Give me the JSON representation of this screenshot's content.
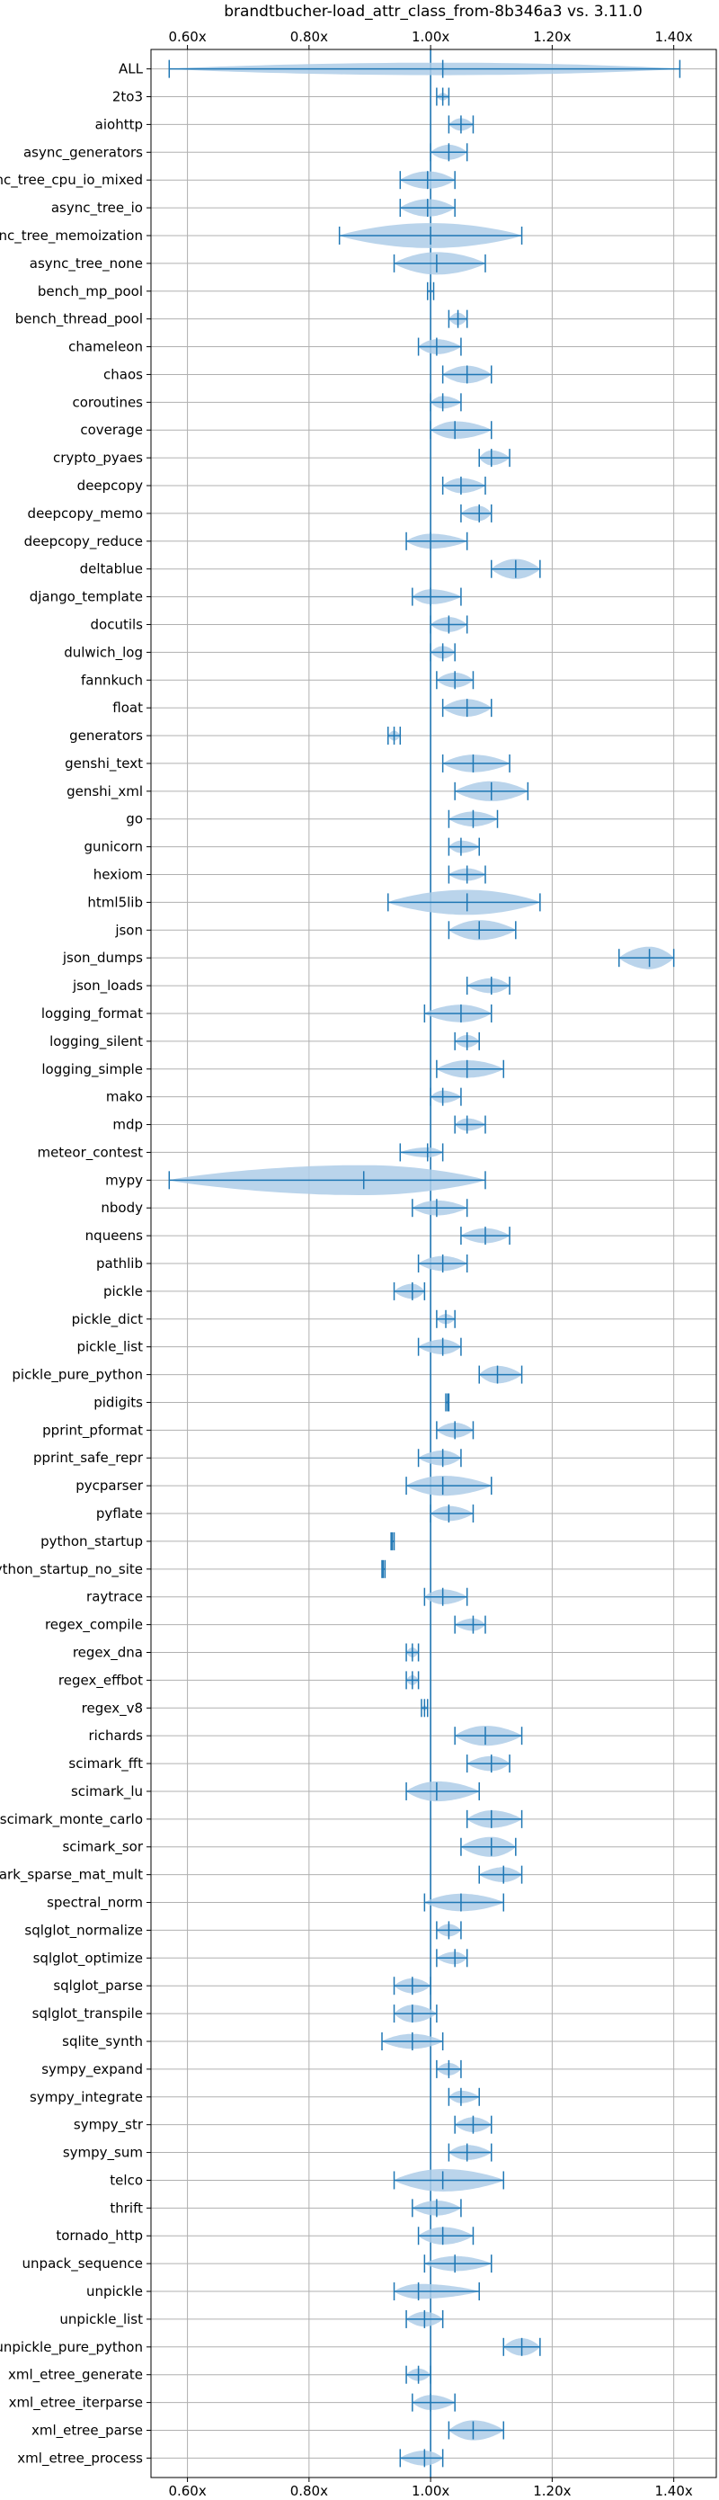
{
  "chart_data": {
    "type": "violin",
    "title": "brandtbucher-load_attr_class_from-8b346a3 vs. 3.11.0",
    "xlabel": "",
    "ylabel": "",
    "x_ticks": [
      0.6,
      0.8,
      1.0,
      1.2,
      1.4
    ],
    "x_tick_labels": [
      "0.60x",
      "0.80x",
      "1.00x",
      "1.20x",
      "1.40x"
    ],
    "xlim": [
      0.54,
      1.47
    ],
    "reference_line": 1.0,
    "grid": true,
    "colors": {
      "violin": "#aecde8",
      "line": "#1f77b4",
      "grid": "#b0b0b0"
    },
    "benchmarks": [
      {
        "name": "ALL",
        "min": 0.57,
        "max": 1.41,
        "mean": 1.02,
        "width": 0.5
      },
      {
        "name": "2to3",
        "min": 1.01,
        "max": 1.03,
        "mean": 1.02,
        "width": 0.3
      },
      {
        "name": "aiohttp",
        "min": 1.03,
        "max": 1.07,
        "mean": 1.05,
        "width": 0.5
      },
      {
        "name": "async_generators",
        "min": 1.0,
        "max": 1.06,
        "mean": 1.03,
        "width": 0.6
      },
      {
        "name": "async_tree_cpu_io_mixed",
        "min": 0.95,
        "max": 1.04,
        "mean": 0.995,
        "width": 0.7
      },
      {
        "name": "async_tree_io",
        "min": 0.95,
        "max": 1.04,
        "mean": 0.995,
        "width": 0.7
      },
      {
        "name": "async_tree_memoization",
        "min": 0.85,
        "max": 1.15,
        "mean": 1.0,
        "width": 1.0
      },
      {
        "name": "async_tree_none",
        "min": 0.94,
        "max": 1.09,
        "mean": 1.01,
        "width": 0.9
      },
      {
        "name": "bench_mp_pool",
        "min": 0.995,
        "max": 1.005,
        "mean": 1.0,
        "width": 0.15
      },
      {
        "name": "bench_thread_pool",
        "min": 1.03,
        "max": 1.06,
        "mean": 1.045,
        "width": 0.5
      },
      {
        "name": "chameleon",
        "min": 0.98,
        "max": 1.05,
        "mean": 1.01,
        "width": 0.6
      },
      {
        "name": "chaos",
        "min": 1.02,
        "max": 1.1,
        "mean": 1.06,
        "width": 0.7
      },
      {
        "name": "coroutines",
        "min": 1.0,
        "max": 1.05,
        "mean": 1.02,
        "width": 0.5
      },
      {
        "name": "coverage",
        "min": 1.0,
        "max": 1.1,
        "mean": 1.04,
        "width": 0.7
      },
      {
        "name": "crypto_pyaes",
        "min": 1.08,
        "max": 1.13,
        "mean": 1.1,
        "width": 0.6
      },
      {
        "name": "deepcopy",
        "min": 1.02,
        "max": 1.09,
        "mean": 1.05,
        "width": 0.6
      },
      {
        "name": "deepcopy_memo",
        "min": 1.05,
        "max": 1.1,
        "mean": 1.08,
        "width": 0.6
      },
      {
        "name": "deepcopy_reduce",
        "min": 0.96,
        "max": 1.06,
        "mean": 1.0,
        "width": 0.6
      },
      {
        "name": "deltablue",
        "min": 1.1,
        "max": 1.18,
        "mean": 1.14,
        "width": 0.8
      },
      {
        "name": "django_template",
        "min": 0.97,
        "max": 1.05,
        "mean": 1.0,
        "width": 0.6
      },
      {
        "name": "docutils",
        "min": 1.0,
        "max": 1.06,
        "mean": 1.03,
        "width": 0.6
      },
      {
        "name": "dulwich_log",
        "min": 1.0,
        "max": 1.04,
        "mean": 1.02,
        "width": 0.5
      },
      {
        "name": "fannkuch",
        "min": 1.01,
        "max": 1.07,
        "mean": 1.04,
        "width": 0.6
      },
      {
        "name": "float",
        "min": 1.02,
        "max": 1.1,
        "mean": 1.06,
        "width": 0.7
      },
      {
        "name": "generators",
        "min": 0.93,
        "max": 0.95,
        "mean": 0.94,
        "width": 0.4
      },
      {
        "name": "genshi_text",
        "min": 1.02,
        "max": 1.13,
        "mean": 1.07,
        "width": 0.7
      },
      {
        "name": "genshi_xml",
        "min": 1.04,
        "max": 1.16,
        "mean": 1.1,
        "width": 0.8
      },
      {
        "name": "go",
        "min": 1.03,
        "max": 1.11,
        "mean": 1.07,
        "width": 0.6
      },
      {
        "name": "gunicorn",
        "min": 1.03,
        "max": 1.08,
        "mean": 1.05,
        "width": 0.5
      },
      {
        "name": "hexiom",
        "min": 1.03,
        "max": 1.09,
        "mean": 1.06,
        "width": 0.5
      },
      {
        "name": "html5lib",
        "min": 0.93,
        "max": 1.18,
        "mean": 1.06,
        "width": 1.0
      },
      {
        "name": "json",
        "min": 1.03,
        "max": 1.14,
        "mean": 1.08,
        "width": 0.8
      },
      {
        "name": "json_dumps",
        "min": 1.31,
        "max": 1.4,
        "mean": 1.36,
        "width": 0.9
      },
      {
        "name": "json_loads",
        "min": 1.06,
        "max": 1.13,
        "mean": 1.1,
        "width": 0.6
      },
      {
        "name": "logging_format",
        "min": 0.99,
        "max": 1.1,
        "mean": 1.05,
        "width": 0.7
      },
      {
        "name": "logging_silent",
        "min": 1.04,
        "max": 1.08,
        "mean": 1.06,
        "width": 0.5
      },
      {
        "name": "logging_simple",
        "min": 1.01,
        "max": 1.12,
        "mean": 1.06,
        "width": 0.7
      },
      {
        "name": "mako",
        "min": 1.0,
        "max": 1.05,
        "mean": 1.02,
        "width": 0.5
      },
      {
        "name": "mdp",
        "min": 1.04,
        "max": 1.09,
        "mean": 1.06,
        "width": 0.5
      },
      {
        "name": "meteor_contest",
        "min": 0.95,
        "max": 1.02,
        "mean": 0.995,
        "width": 0.4
      },
      {
        "name": "mypy",
        "min": 0.57,
        "max": 1.09,
        "mean": 0.89,
        "width": 1.2
      },
      {
        "name": "nbody",
        "min": 0.97,
        "max": 1.06,
        "mean": 1.01,
        "width": 0.6
      },
      {
        "name": "nqueens",
        "min": 1.05,
        "max": 1.13,
        "mean": 1.09,
        "width": 0.6
      },
      {
        "name": "pathlib",
        "min": 0.98,
        "max": 1.06,
        "mean": 1.02,
        "width": 0.6
      },
      {
        "name": "pickle",
        "min": 0.94,
        "max": 0.99,
        "mean": 0.97,
        "width": 0.6
      },
      {
        "name": "pickle_dict",
        "min": 1.01,
        "max": 1.04,
        "mean": 1.025,
        "width": 0.4
      },
      {
        "name": "pickle_list",
        "min": 0.98,
        "max": 1.05,
        "mean": 1.02,
        "width": 0.6
      },
      {
        "name": "pickle_pure_python",
        "min": 1.08,
        "max": 1.15,
        "mean": 1.11,
        "width": 0.7
      },
      {
        "name": "pidigits",
        "min": 1.025,
        "max": 1.03,
        "mean": 1.028,
        "width": 0.1
      },
      {
        "name": "pprint_pformat",
        "min": 1.01,
        "max": 1.07,
        "mean": 1.04,
        "width": 0.6
      },
      {
        "name": "pprint_safe_repr",
        "min": 0.98,
        "max": 1.05,
        "mean": 1.02,
        "width": 0.6
      },
      {
        "name": "pycparser",
        "min": 0.96,
        "max": 1.1,
        "mean": 1.02,
        "width": 0.8
      },
      {
        "name": "pyflate",
        "min": 1.0,
        "max": 1.07,
        "mean": 1.03,
        "width": 0.6
      },
      {
        "name": "python_startup",
        "min": 0.935,
        "max": 0.94,
        "mean": 0.937,
        "width": 0.1
      },
      {
        "name": "python_startup_no_site",
        "min": 0.92,
        "max": 0.925,
        "mean": 0.922,
        "width": 0.1
      },
      {
        "name": "raytrace",
        "min": 0.99,
        "max": 1.06,
        "mean": 1.02,
        "width": 0.6
      },
      {
        "name": "regex_compile",
        "min": 1.04,
        "max": 1.09,
        "mean": 1.07,
        "width": 0.5
      },
      {
        "name": "regex_dna",
        "min": 0.96,
        "max": 0.98,
        "mean": 0.97,
        "width": 0.4
      },
      {
        "name": "regex_effbot",
        "min": 0.96,
        "max": 0.98,
        "mean": 0.97,
        "width": 0.4
      },
      {
        "name": "regex_v8",
        "min": 0.985,
        "max": 0.995,
        "mean": 0.99,
        "width": 0.2
      },
      {
        "name": "richards",
        "min": 1.04,
        "max": 1.15,
        "mean": 1.09,
        "width": 0.8
      },
      {
        "name": "scimark_fft",
        "min": 1.06,
        "max": 1.13,
        "mean": 1.1,
        "width": 0.6
      },
      {
        "name": "scimark_lu",
        "min": 0.96,
        "max": 1.08,
        "mean": 1.01,
        "width": 0.8
      },
      {
        "name": "scimark_monte_carlo",
        "min": 1.06,
        "max": 1.15,
        "mean": 1.1,
        "width": 0.7
      },
      {
        "name": "scimark_sor",
        "min": 1.05,
        "max": 1.14,
        "mean": 1.1,
        "width": 0.8
      },
      {
        "name": "scimark_sparse_mat_mult",
        "min": 1.08,
        "max": 1.15,
        "mean": 1.12,
        "width": 0.6
      },
      {
        "name": "spectral_norm",
        "min": 0.99,
        "max": 1.12,
        "mean": 1.05,
        "width": 0.7
      },
      {
        "name": "sqlglot_normalize",
        "min": 1.01,
        "max": 1.05,
        "mean": 1.03,
        "width": 0.5
      },
      {
        "name": "sqlglot_optimize",
        "min": 1.01,
        "max": 1.06,
        "mean": 1.04,
        "width": 0.5
      },
      {
        "name": "sqlglot_parse",
        "min": 0.94,
        "max": 1.0,
        "mean": 0.97,
        "width": 0.6
      },
      {
        "name": "sqlglot_transpile",
        "min": 0.94,
        "max": 1.01,
        "mean": 0.97,
        "width": 0.7
      },
      {
        "name": "sqlite_synth",
        "min": 0.92,
        "max": 1.02,
        "mean": 0.97,
        "width": 0.6
      },
      {
        "name": "sympy_expand",
        "min": 1.01,
        "max": 1.05,
        "mean": 1.03,
        "width": 0.5
      },
      {
        "name": "sympy_integrate",
        "min": 1.03,
        "max": 1.08,
        "mean": 1.05,
        "width": 0.5
      },
      {
        "name": "sympy_str",
        "min": 1.04,
        "max": 1.1,
        "mean": 1.07,
        "width": 0.6
      },
      {
        "name": "sympy_sum",
        "min": 1.03,
        "max": 1.1,
        "mean": 1.06,
        "width": 0.6
      },
      {
        "name": "telco",
        "min": 0.94,
        "max": 1.12,
        "mean": 1.02,
        "width": 0.9
      },
      {
        "name": "thrift",
        "min": 0.97,
        "max": 1.05,
        "mean": 1.01,
        "width": 0.6
      },
      {
        "name": "tornado_http",
        "min": 0.98,
        "max": 1.07,
        "mean": 1.02,
        "width": 0.7
      },
      {
        "name": "unpack_sequence",
        "min": 0.99,
        "max": 1.1,
        "mean": 1.04,
        "width": 0.6
      },
      {
        "name": "unpickle",
        "min": 0.94,
        "max": 1.08,
        "mean": 0.98,
        "width": 0.6
      },
      {
        "name": "unpickle_list",
        "min": 0.96,
        "max": 1.02,
        "mean": 0.99,
        "width": 0.6
      },
      {
        "name": "unpickle_pure_python",
        "min": 1.12,
        "max": 1.18,
        "mean": 1.15,
        "width": 0.7
      },
      {
        "name": "xml_etree_generate",
        "min": 0.96,
        "max": 1.0,
        "mean": 0.98,
        "width": 0.5
      },
      {
        "name": "xml_etree_iterparse",
        "min": 0.97,
        "max": 1.04,
        "mean": 1.0,
        "width": 0.6
      },
      {
        "name": "xml_etree_parse",
        "min": 1.03,
        "max": 1.12,
        "mean": 1.07,
        "width": 0.8
      },
      {
        "name": "xml_etree_process",
        "min": 0.95,
        "max": 1.02,
        "mean": 0.99,
        "width": 0.6
      }
    ]
  }
}
